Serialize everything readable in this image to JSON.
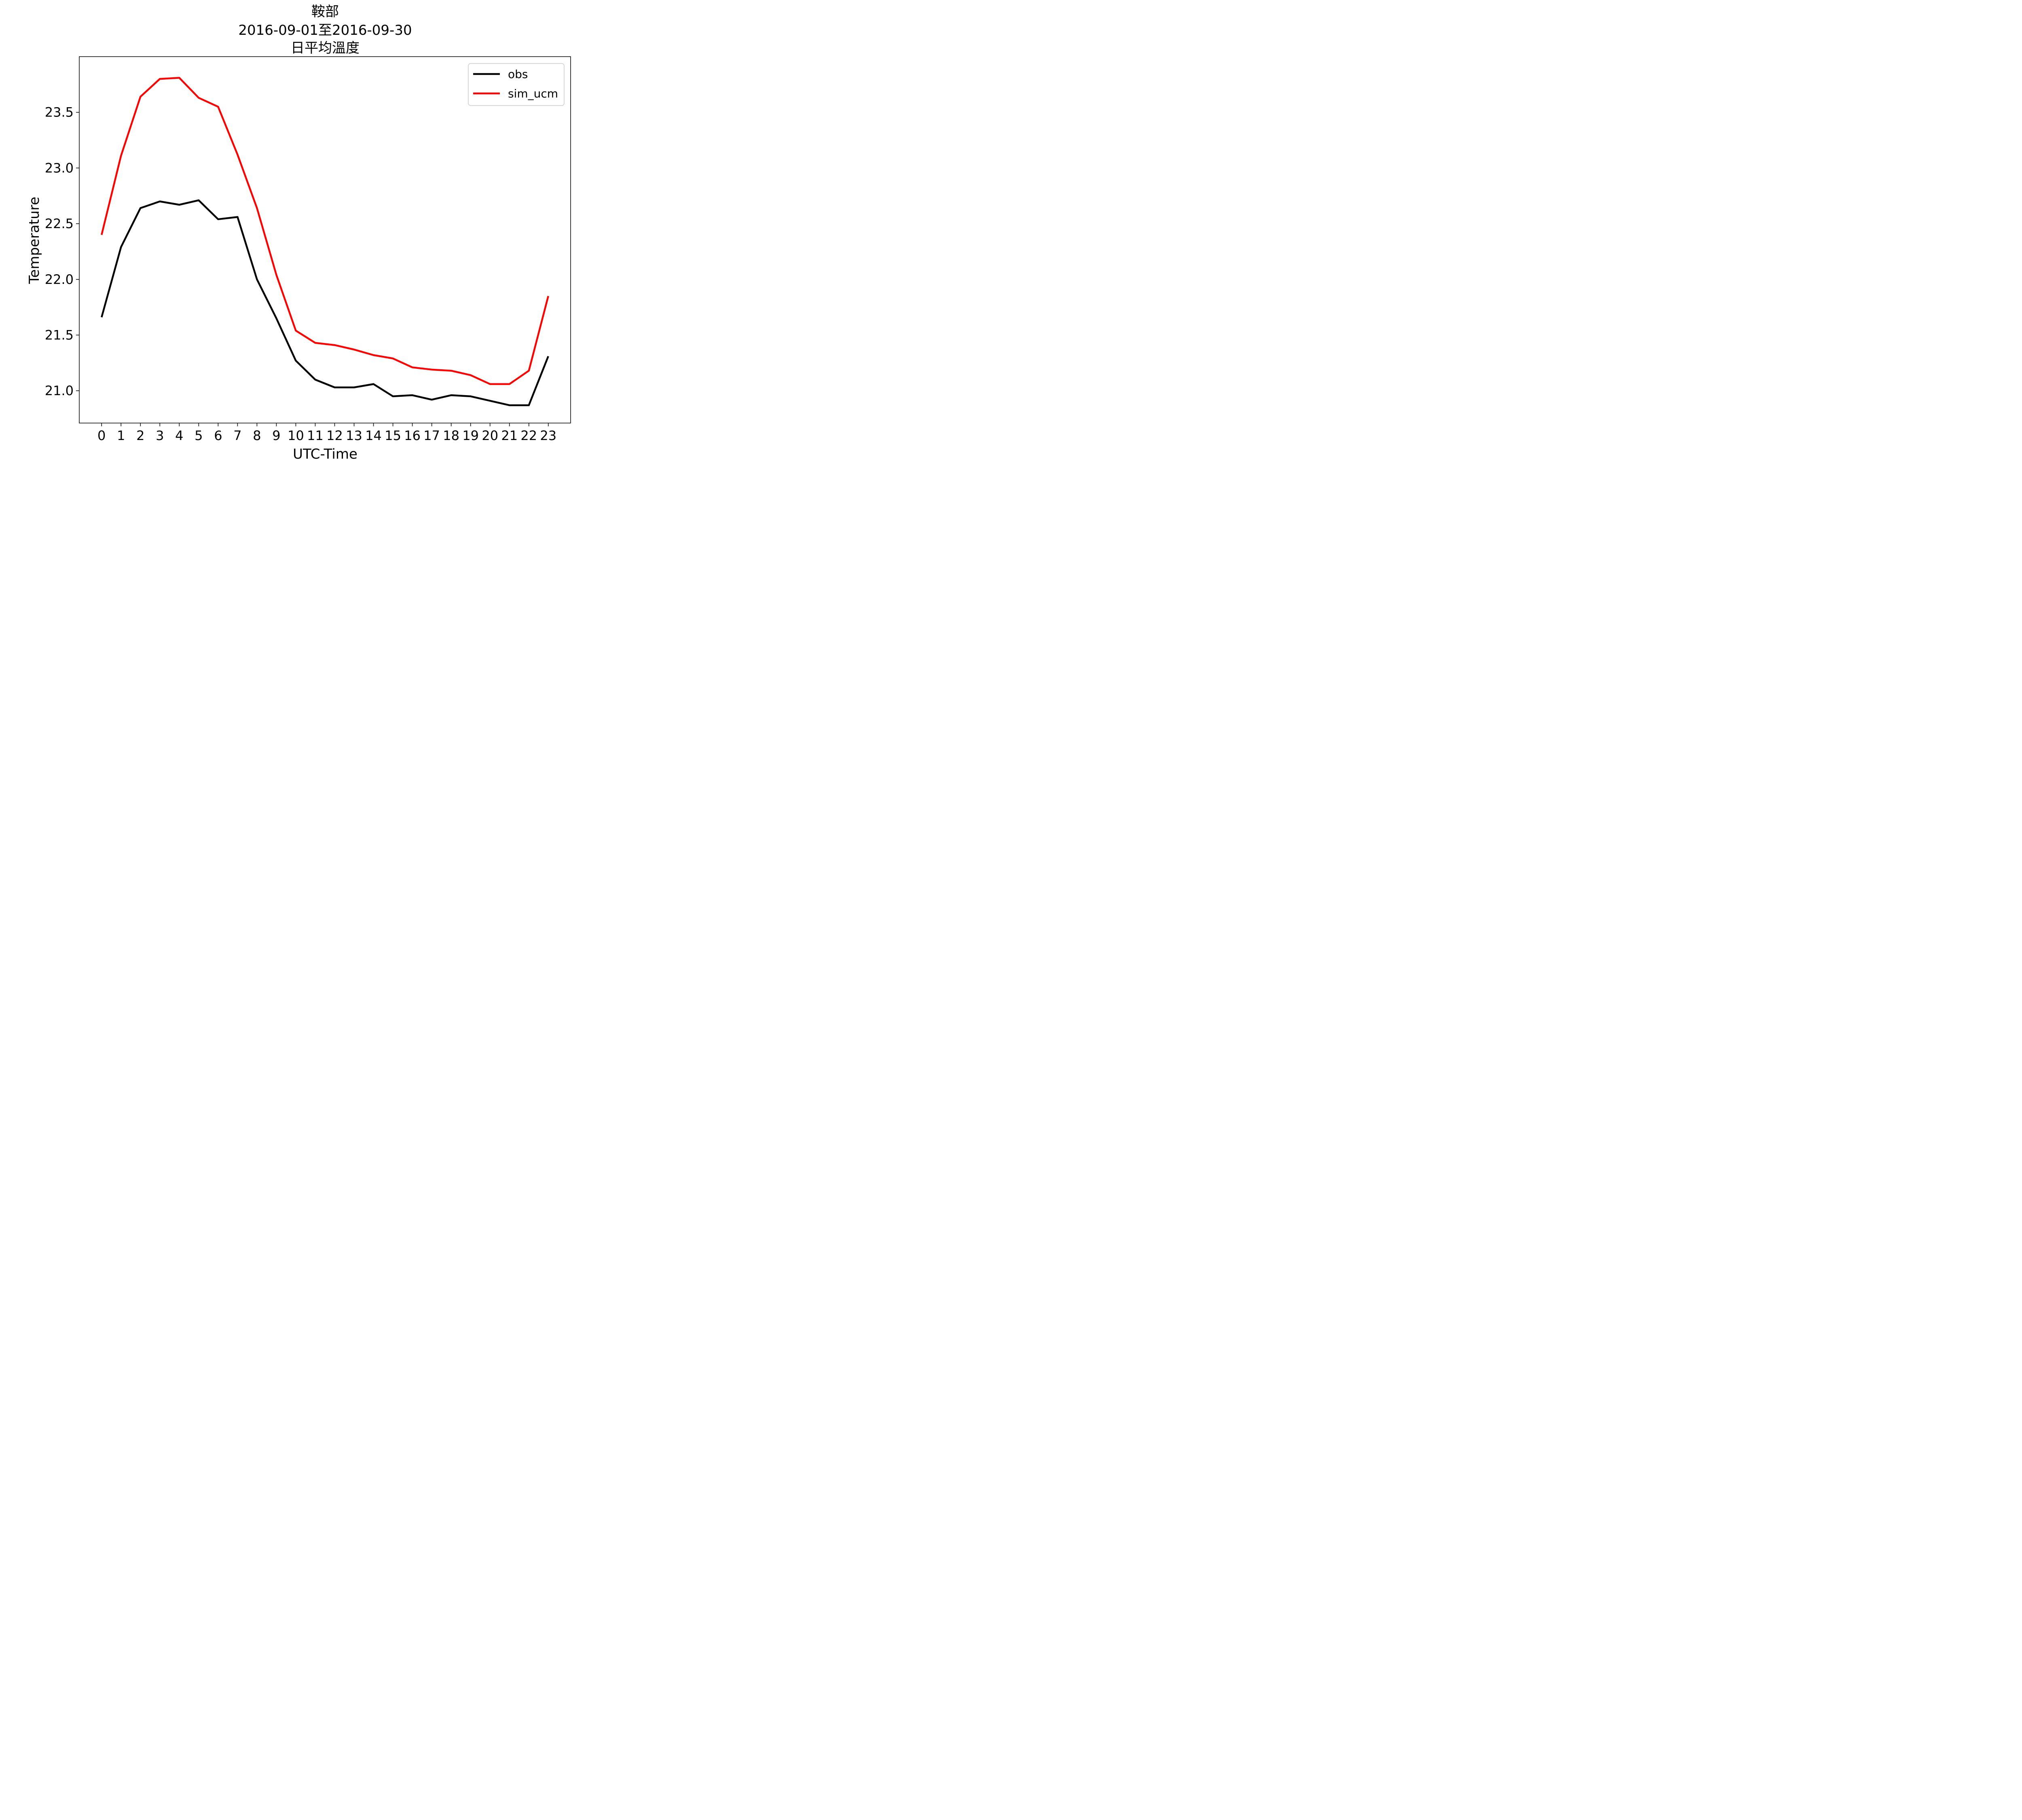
{
  "chart_data": {
    "type": "line",
    "title_lines": [
      "鞍部",
      "2016-09-01至2016-09-30",
      "日平均溫度"
    ],
    "xlabel": "UTC-Time",
    "ylabel": "Temperature",
    "x": [
      0,
      1,
      2,
      3,
      4,
      5,
      6,
      7,
      8,
      9,
      10,
      11,
      12,
      13,
      14,
      15,
      16,
      17,
      18,
      19,
      20,
      21,
      22,
      23
    ],
    "xlim": [
      -1.15,
      24.15
    ],
    "ylim": [
      20.71,
      24.0
    ],
    "yticks": [
      "21.0",
      "21.5",
      "22.0",
      "22.5",
      "23.0",
      "23.5"
    ],
    "grid": false,
    "legend_position": "upper right",
    "series": [
      {
        "name": "obs",
        "color": "#000000",
        "values": [
          21.66,
          22.29,
          22.64,
          22.7,
          22.67,
          22.71,
          22.54,
          22.56,
          22.0,
          21.65,
          21.27,
          21.1,
          21.03,
          21.03,
          21.06,
          20.95,
          20.96,
          20.92,
          20.96,
          20.95,
          20.91,
          20.87,
          20.87,
          21.31
        ]
      },
      {
        "name": "sim_ucm",
        "color": "#ff0000",
        "values": [
          22.4,
          23.11,
          23.64,
          23.8,
          23.81,
          23.63,
          23.55,
          23.12,
          22.64,
          22.04,
          21.54,
          21.43,
          21.41,
          21.37,
          21.32,
          21.29,
          21.21,
          21.19,
          21.18,
          21.14,
          21.06,
          21.06,
          21.18,
          21.85
        ]
      }
    ]
  }
}
